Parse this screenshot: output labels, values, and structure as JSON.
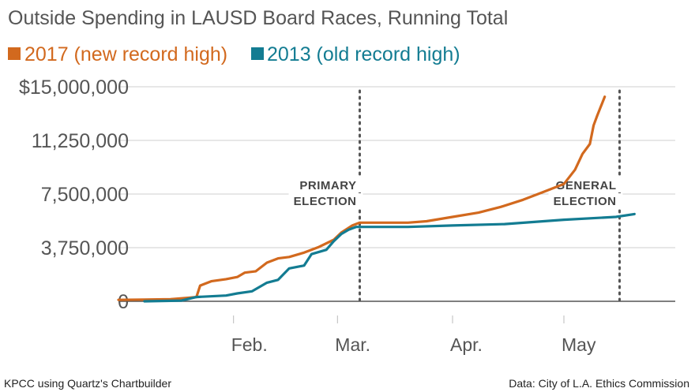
{
  "chart_data": {
    "type": "line",
    "title": "Outside Spending in LAUSD Board Races, Running Total",
    "xlabel": "",
    "ylabel": "",
    "x_axis_type": "date",
    "xlim": [
      "2017-01-01",
      "2017-05-31"
    ],
    "ylim": [
      0,
      15000000
    ],
    "y_ticks": [
      0,
      3750000,
      7500000,
      11250000,
      15000000
    ],
    "y_tick_labels": [
      "0",
      "3,750,000",
      "7,500,000",
      "11,250,000",
      "$15,000,000"
    ],
    "x_ticks": [
      "2017-02-01",
      "2017-03-01",
      "2017-04-01",
      "2017-05-01"
    ],
    "x_tick_labels": [
      "Feb.",
      "Mar.",
      "Apr.",
      "May"
    ],
    "grid": true,
    "legend": "top-left",
    "annotations": [
      {
        "label_lines": [
          "PRIMARY",
          "ELECTION"
        ],
        "x": "2017-03-07"
      },
      {
        "label_lines": [
          "GENERAL",
          "ELECTION"
        ],
        "x": "2017-05-16"
      }
    ],
    "series": [
      {
        "name": "2017 (new record high)",
        "color": "#d2691e",
        "points": [
          [
            "2017-01-01",
            100000
          ],
          [
            "2017-01-08",
            120000
          ],
          [
            "2017-01-15",
            150000
          ],
          [
            "2017-01-20",
            250000
          ],
          [
            "2017-01-22",
            300000
          ],
          [
            "2017-01-23",
            1100000
          ],
          [
            "2017-01-26",
            1400000
          ],
          [
            "2017-01-30",
            1550000
          ],
          [
            "2017-02-02",
            1700000
          ],
          [
            "2017-02-04",
            2000000
          ],
          [
            "2017-02-07",
            2100000
          ],
          [
            "2017-02-10",
            2700000
          ],
          [
            "2017-02-13",
            3000000
          ],
          [
            "2017-02-16",
            3100000
          ],
          [
            "2017-02-20",
            3400000
          ],
          [
            "2017-02-24",
            3800000
          ],
          [
            "2017-02-28",
            4300000
          ],
          [
            "2017-03-02",
            4800000
          ],
          [
            "2017-03-05",
            5300000
          ],
          [
            "2017-03-07",
            5500000
          ],
          [
            "2017-03-20",
            5500000
          ],
          [
            "2017-03-25",
            5600000
          ],
          [
            "2017-04-01",
            5900000
          ],
          [
            "2017-04-08",
            6200000
          ],
          [
            "2017-04-14",
            6600000
          ],
          [
            "2017-04-20",
            7100000
          ],
          [
            "2017-04-25",
            7600000
          ],
          [
            "2017-05-01",
            8200000
          ],
          [
            "2017-05-04",
            9200000
          ],
          [
            "2017-05-06",
            10300000
          ],
          [
            "2017-05-08",
            11000000
          ],
          [
            "2017-05-09",
            12300000
          ],
          [
            "2017-05-10",
            13000000
          ],
          [
            "2017-05-12",
            14300000
          ]
        ]
      },
      {
        "name": "2013 (old record high)",
        "color": "#137c92",
        "points": [
          [
            "2017-01-08",
            0
          ],
          [
            "2017-01-18",
            50000
          ],
          [
            "2017-01-22",
            300000
          ],
          [
            "2017-01-30",
            400000
          ],
          [
            "2017-02-02",
            550000
          ],
          [
            "2017-02-06",
            700000
          ],
          [
            "2017-02-10",
            1300000
          ],
          [
            "2017-02-13",
            1500000
          ],
          [
            "2017-02-16",
            2300000
          ],
          [
            "2017-02-20",
            2500000
          ],
          [
            "2017-02-22",
            3300000
          ],
          [
            "2017-02-26",
            3600000
          ],
          [
            "2017-02-28",
            4200000
          ],
          [
            "2017-03-02",
            4700000
          ],
          [
            "2017-03-04",
            5000000
          ],
          [
            "2017-03-06",
            5200000
          ],
          [
            "2017-03-20",
            5200000
          ],
          [
            "2017-04-01",
            5300000
          ],
          [
            "2017-04-15",
            5400000
          ],
          [
            "2017-05-01",
            5700000
          ],
          [
            "2017-05-15",
            5900000
          ],
          [
            "2017-05-20",
            6100000
          ]
        ]
      }
    ]
  },
  "footer": {
    "left": "KPCC using Quartz's Chartbuilder",
    "right": "Data: City of L.A. Ethics Commission"
  }
}
